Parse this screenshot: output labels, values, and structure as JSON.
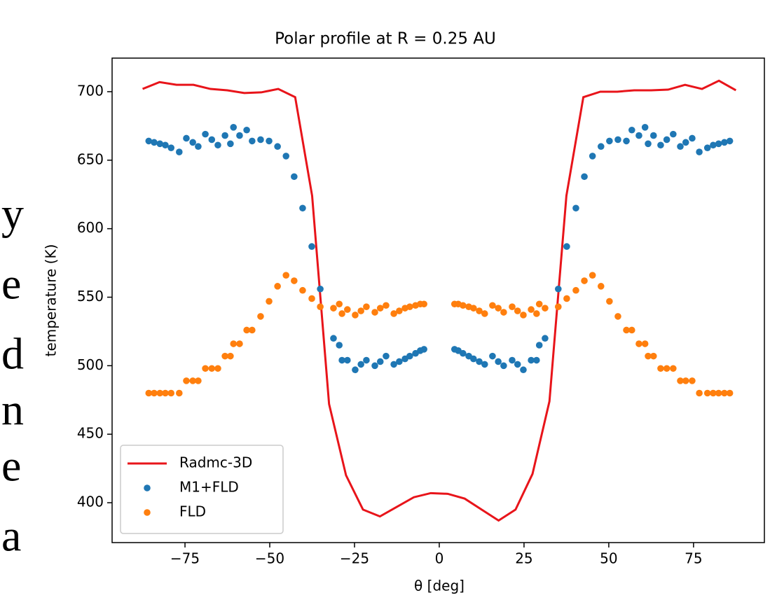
{
  "margin_text": [
    "y",
    "e",
    "d",
    "n",
    "e",
    "a"
  ],
  "chart_data": {
    "type": "line-scatter",
    "title": "Polar profile at R = 0.25 AU",
    "xlabel": "θ [deg]",
    "ylabel": "temperature (K)",
    "xlim": [
      -96.5,
      95.9
    ],
    "ylim": [
      370.9,
      724.5
    ],
    "xticks": [
      {
        "value": -75,
        "label": "−75"
      },
      {
        "value": -50,
        "label": "−50"
      },
      {
        "value": -25,
        "label": "−25"
      },
      0,
      25,
      50,
      75
    ],
    "yticks": [
      400,
      450,
      500,
      550,
      600,
      650,
      700
    ],
    "legend": "lower left",
    "series": [
      {
        "name": "Radmc-3D",
        "kind": "line",
        "color": "#e8141a",
        "x": [
          -87.5,
          -82.5,
          -77.5,
          -72.5,
          -67.5,
          -62.5,
          -57.5,
          -52.5,
          -47.5,
          -42.5,
          -37.5,
          -32.5,
          -27.5,
          -22.5,
          -17.5,
          -12.5,
          -7.5,
          -2.5,
          2.5,
          7.5,
          12.5,
          17.5,
          22.5,
          27.5,
          32.5,
          37.5,
          42.5,
          47.5,
          52.5,
          57.5,
          62.5,
          67.5,
          72.5,
          77.5,
          82.5,
          87.5
        ],
        "values": [
          702,
          707,
          705,
          705,
          702,
          701,
          699,
          699.5,
          702,
          696,
          624,
          472,
          420,
          395,
          390,
          397,
          404,
          407,
          406.5,
          403,
          395,
          387,
          395,
          421,
          474,
          624,
          696,
          700,
          700,
          701,
          701,
          701.5,
          705,
          702,
          708,
          701
        ]
      },
      {
        "name": "M1+FLD",
        "kind": "scatter",
        "color": "#1f77b4",
        "x": [
          -85.7,
          -84.1,
          -82.4,
          -80.8,
          -79.1,
          -76.7,
          -74.6,
          -72.7,
          -71.1,
          -69.0,
          -67.1,
          -65.3,
          -63.2,
          -61.6,
          -60.7,
          -58.9,
          -56.8,
          -55.2,
          -52.7,
          -50.2,
          -47.7,
          -45.2,
          -42.8,
          -40.3,
          -37.6,
          -35.1,
          -31.2,
          -29.5,
          -28.7,
          -27.1,
          -24.8,
          -23.1,
          -21.5,
          -19.0,
          -17.4,
          -15.7,
          -13.4,
          -11.8,
          -10.1,
          -8.7,
          -7.0,
          -5.6,
          -4.5,
          4.5,
          5.6,
          7.0,
          8.7,
          10.1,
          11.8,
          13.4,
          15.7,
          17.4,
          19.0,
          21.5,
          23.1,
          24.8,
          27.1,
          28.7,
          29.5,
          31.2,
          35.1,
          37.6,
          40.3,
          42.8,
          45.2,
          47.7,
          50.2,
          52.7,
          55.2,
          56.8,
          58.9,
          60.7,
          61.6,
          63.2,
          65.3,
          67.1,
          69.0,
          71.1,
          72.7,
          74.6,
          76.7,
          79.1,
          80.8,
          82.4,
          84.1,
          85.7
        ],
        "values": [
          664,
          663,
          662,
          661,
          659,
          656,
          666,
          663,
          660,
          669,
          665,
          661,
          668,
          662,
          674,
          668,
          672,
          664,
          665,
          664,
          660,
          653,
          638,
          615,
          587,
          556,
          520,
          515,
          504,
          504,
          497,
          501,
          504,
          500,
          503,
          507,
          501,
          503,
          505,
          507,
          509,
          511,
          512,
          512,
          511,
          509,
          507,
          505,
          503,
          501,
          507,
          503,
          500,
          504,
          501,
          497,
          504,
          504,
          515,
          520,
          556,
          587,
          615,
          638,
          653,
          660,
          664,
          665,
          664,
          672,
          668,
          674,
          662,
          668,
          661,
          665,
          669,
          660,
          663,
          666,
          656,
          659,
          661,
          662,
          663,
          664
        ]
      },
      {
        "name": "FLD",
        "kind": "scatter",
        "color": "#ff7f0e",
        "x": [
          -85.7,
          -84.1,
          -82.4,
          -80.8,
          -79.1,
          -76.7,
          -74.6,
          -72.7,
          -71.1,
          -69.0,
          -67.1,
          -65.3,
          -63.2,
          -61.6,
          -60.7,
          -58.9,
          -56.8,
          -55.2,
          -52.7,
          -50.2,
          -47.7,
          -45.2,
          -42.8,
          -40.3,
          -37.6,
          -35.1,
          -31.2,
          -29.5,
          -28.7,
          -27.1,
          -24.8,
          -23.1,
          -21.5,
          -19.0,
          -17.4,
          -15.7,
          -13.4,
          -11.8,
          -10.1,
          -8.7,
          -7.0,
          -5.6,
          -4.5,
          4.5,
          5.6,
          7.0,
          8.7,
          10.1,
          11.8,
          13.4,
          15.7,
          17.4,
          19.0,
          21.5,
          23.1,
          24.8,
          27.1,
          28.7,
          29.5,
          31.2,
          35.1,
          37.6,
          40.3,
          42.8,
          45.2,
          47.7,
          50.2,
          52.7,
          55.2,
          56.8,
          58.9,
          60.7,
          61.6,
          63.2,
          65.3,
          67.1,
          69.0,
          71.1,
          72.7,
          74.6,
          76.7,
          79.1,
          80.8,
          82.4,
          84.1,
          85.7
        ],
        "values": [
          480,
          480,
          480,
          480,
          480,
          480,
          489,
          489,
          489,
          498,
          498,
          498,
          507,
          507,
          516,
          516,
          526,
          526,
          536,
          547,
          558,
          566,
          562,
          555,
          549,
          543,
          542,
          545,
          538,
          541,
          537,
          540,
          543,
          539,
          542,
          544,
          538,
          540,
          542,
          543,
          544,
          545,
          545,
          545,
          545,
          544,
          543,
          542,
          540,
          538,
          544,
          542,
          539,
          543,
          540,
          537,
          541,
          538,
          545,
          542,
          543,
          549,
          555,
          562,
          566,
          558,
          547,
          536,
          526,
          526,
          516,
          516,
          507,
          507,
          498,
          498,
          498,
          489,
          489,
          489,
          480,
          480,
          480,
          480,
          480,
          480
        ]
      }
    ]
  }
}
